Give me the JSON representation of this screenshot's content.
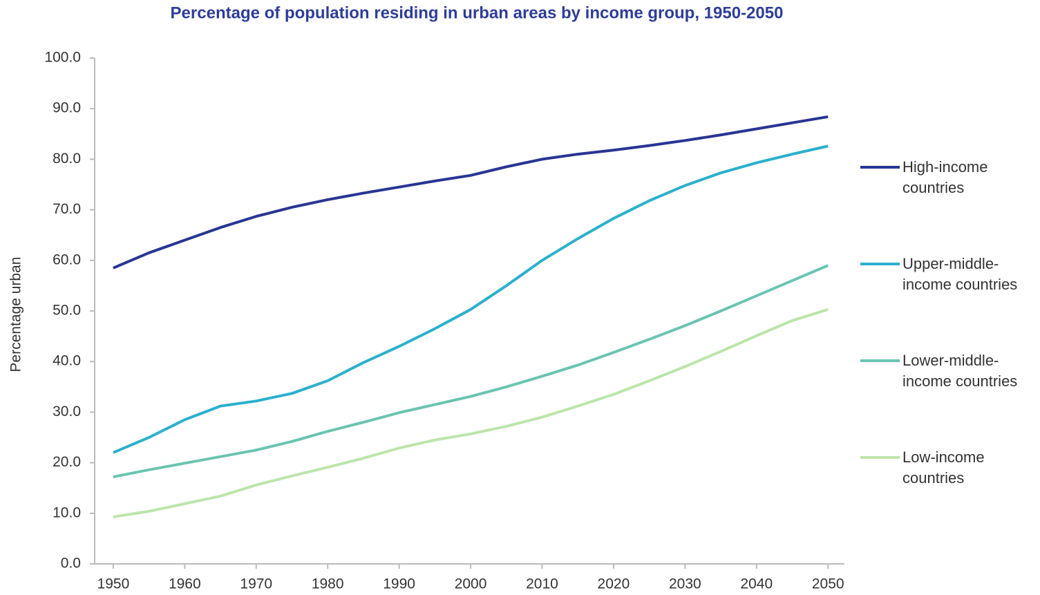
{
  "chart_data": {
    "type": "line",
    "title": "Percentage of population residing in urban areas by income group, 1950-2050",
    "y_label": "Percentage urban",
    "x": [
      1950,
      1955,
      1960,
      1965,
      1970,
      1975,
      1980,
      1985,
      1990,
      1995,
      2000,
      2005,
      2010,
      2015,
      2020,
      2025,
      2030,
      2035,
      2040,
      2045,
      2050
    ],
    "series": [
      {
        "name": "High-income countries",
        "color": "#283593",
        "values": [
          58.5,
          61.5,
          64,
          66.5,
          68.7,
          70.5,
          72,
          73.3,
          74.5,
          75.7,
          76.8,
          78.5,
          80,
          81,
          81.8,
          82.7,
          83.7,
          84.8,
          86,
          87.2,
          88.4
        ]
      },
      {
        "name": "Upper-middle-income countries",
        "color": "#2bb0cd",
        "values": [
          22,
          25,
          28.5,
          31.2,
          32.2,
          33.7,
          36.2,
          39.8,
          43,
          46.5,
          50.3,
          55,
          60,
          64.3,
          68.3,
          71.8,
          74.8,
          77.3,
          79.3,
          81,
          82.6
        ]
      },
      {
        "name": "Lower-middle-income countries",
        "color": "#6ac4b0",
        "values": [
          17.2,
          18.6,
          19.9,
          21.2,
          22.5,
          24.2,
          26.2,
          28,
          29.9,
          31.5,
          33.1,
          35,
          37.1,
          39.3,
          41.8,
          44.4,
          47.1,
          50,
          53,
          56,
          59
        ]
      },
      {
        "name": "Low-income countries",
        "color": "#bce5aa",
        "values": [
          9.3,
          10.4,
          11.9,
          13.4,
          15.6,
          17.4,
          19.1,
          20.9,
          22.9,
          24.5,
          25.7,
          27.2,
          29,
          31.2,
          33.5,
          36.2,
          39,
          42,
          45.1,
          48.1,
          50.3
        ]
      }
    ],
    "xlim": [
      1947.4,
      2052.3
    ],
    "xticks": [
      1950,
      1960,
      1970,
      1980,
      1990,
      2000,
      2010,
      2020,
      2030,
      2040,
      2050
    ],
    "ylim": [
      0,
      100
    ],
    "yticks": [
      {
        "value": 0,
        "label": "0.0"
      },
      {
        "value": 10,
        "label": "10.0"
      },
      {
        "value": 20,
        "label": "20.0"
      },
      {
        "value": 30,
        "label": "30.0"
      },
      {
        "value": 40,
        "label": "40.0"
      },
      {
        "value": 50,
        "label": "50.0"
      },
      {
        "value": 60,
        "label": "60.0"
      },
      {
        "value": 70,
        "label": "70.0"
      },
      {
        "value": 80,
        "label": "80.0"
      },
      {
        "value": 90,
        "label": "90.0"
      },
      {
        "value": 100,
        "label": "100.0"
      }
    ],
    "grid": false,
    "legend": "right"
  }
}
